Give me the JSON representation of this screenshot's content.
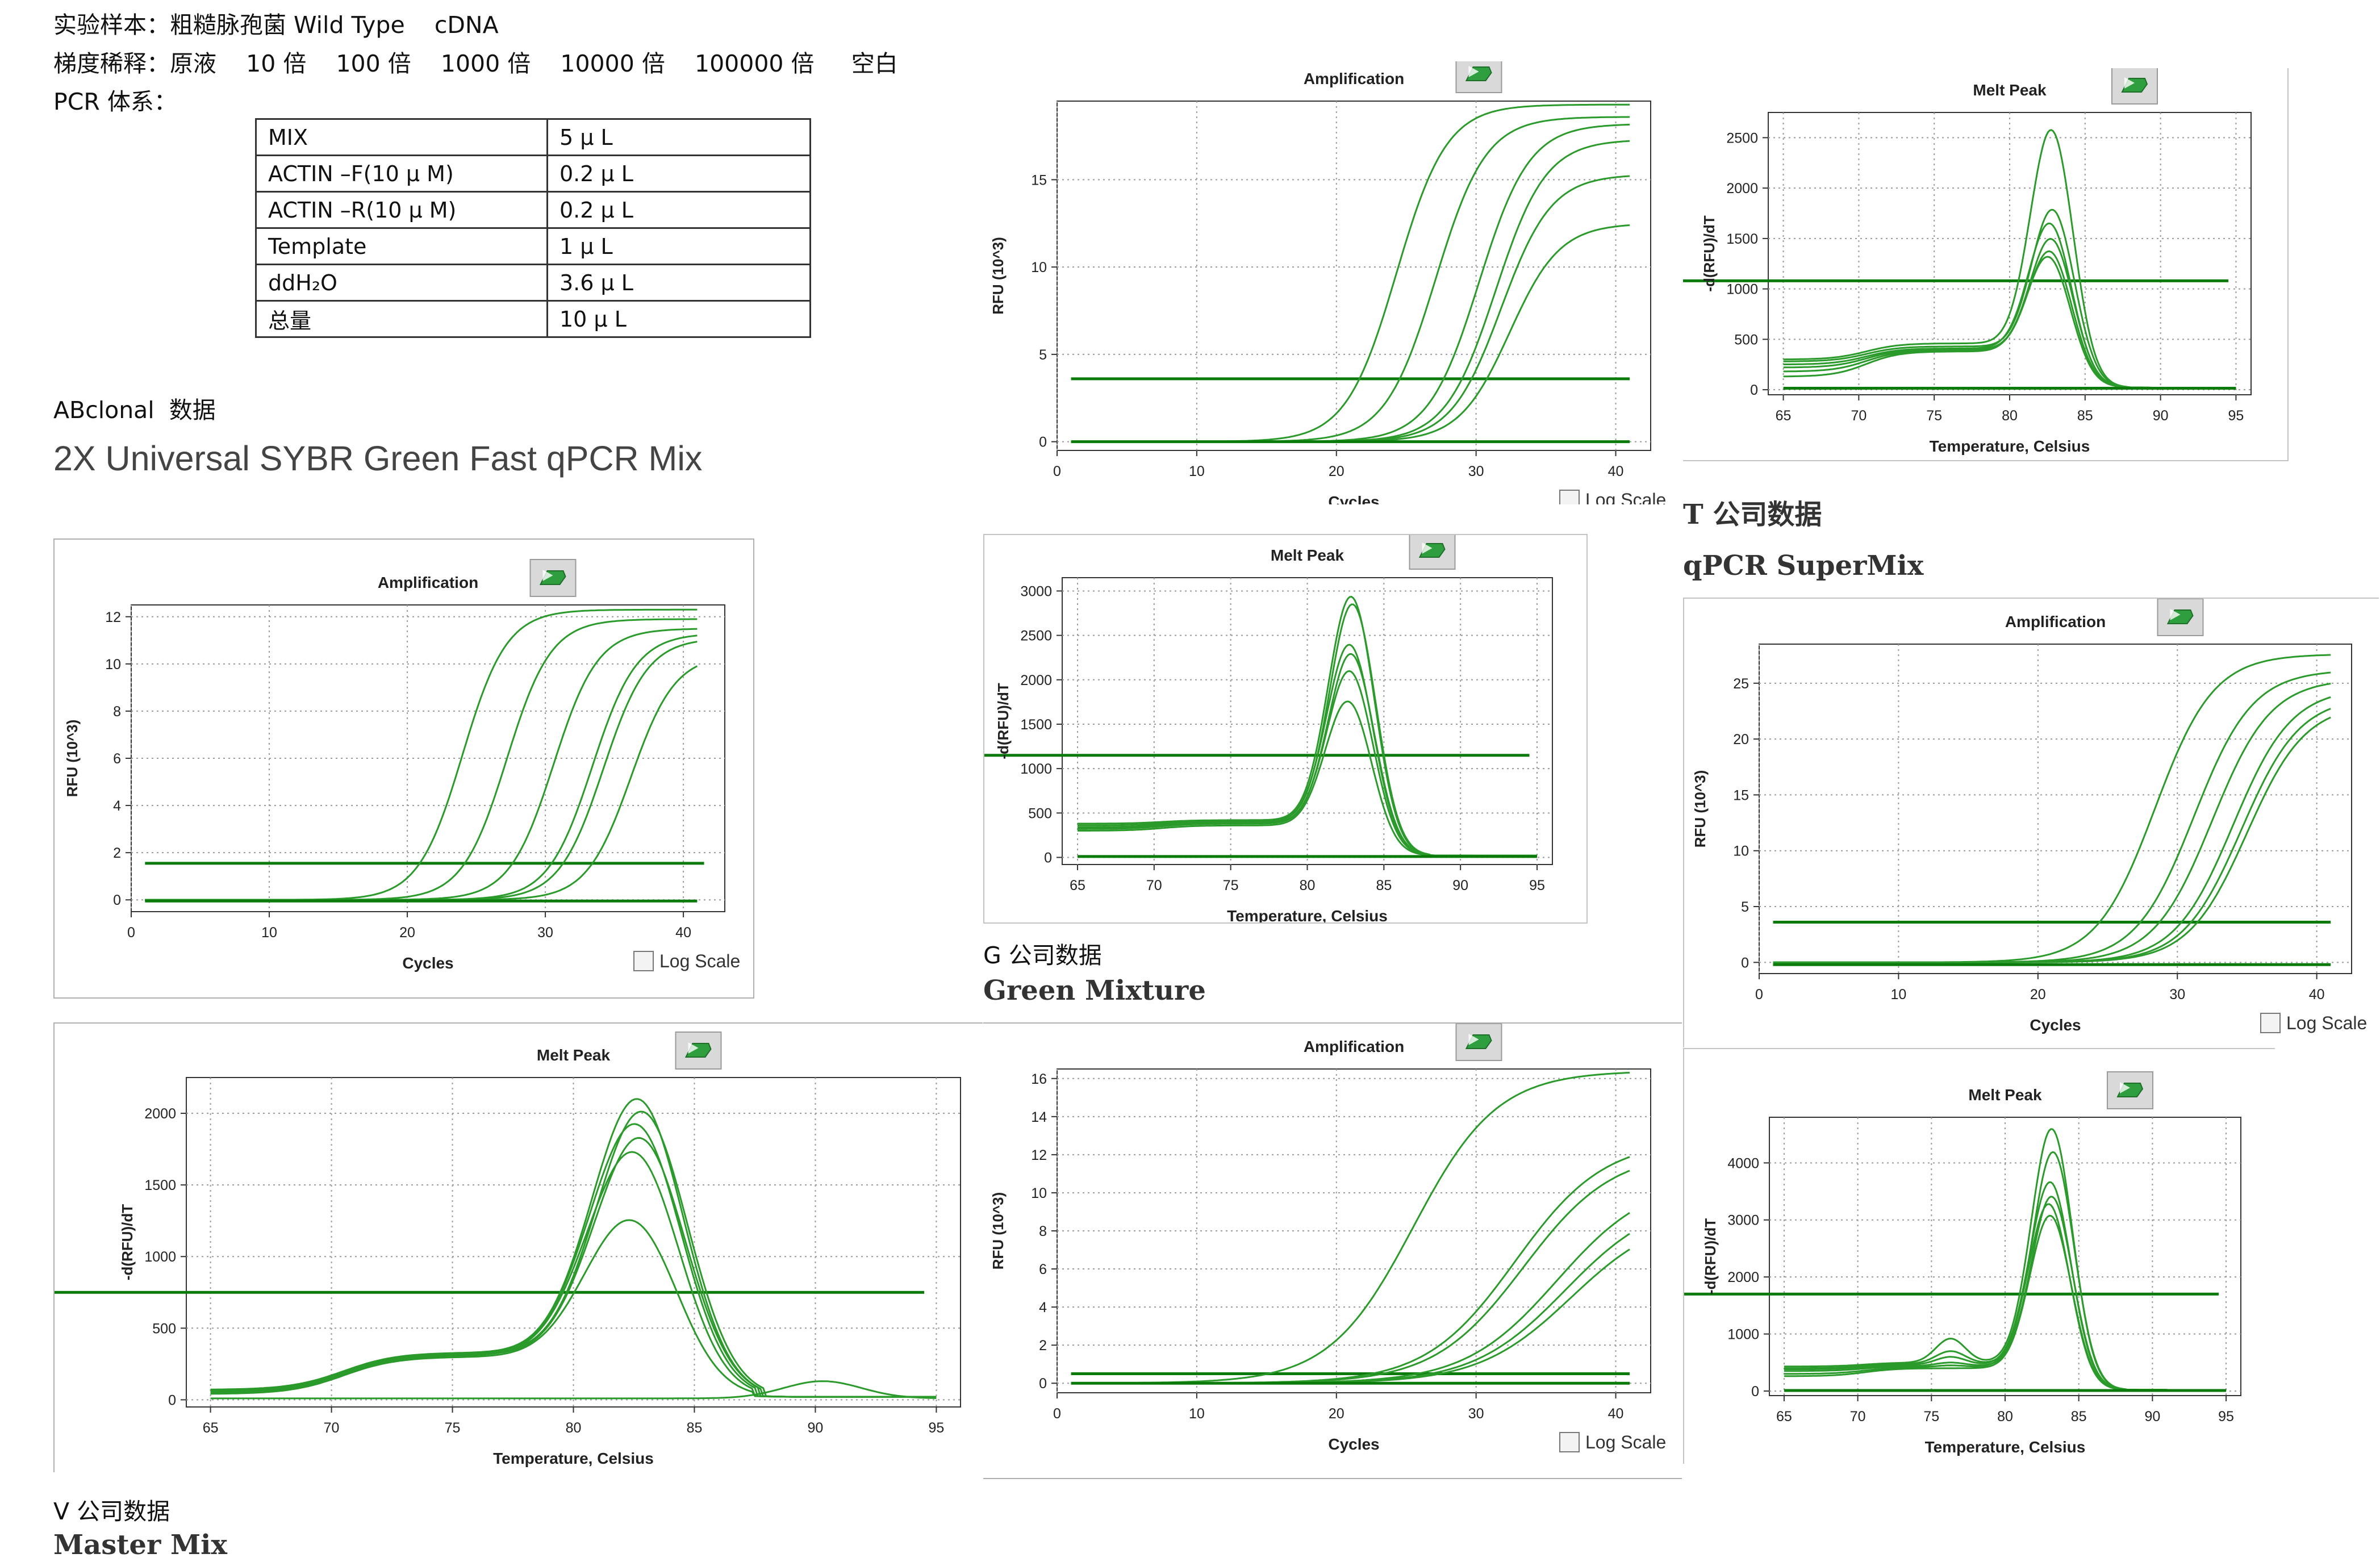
{
  "header": {
    "sample_line": "实验样本：粗糙脉孢菌 Wild Type    cDNA",
    "dilution_line": "梯度稀释：原液    10 倍    100 倍    1000 倍    10000 倍    100000 倍     空白",
    "system_line": "PCR 体系："
  },
  "pcr_table": [
    {
      "name": "MIX",
      "amount": "5 μ L"
    },
    {
      "name": "ACTIN –F(10 μ M)",
      "amount": "0.2 μ L"
    },
    {
      "name": "ACTIN –R(10 μ M)",
      "amount": "0.2 μ L"
    },
    {
      "name": "Template",
      "amount": "1 μ L"
    },
    {
      "name": "ddH₂O",
      "amount": "3.6 μ L"
    },
    {
      "name": "总量",
      "amount": "10 μ L"
    }
  ],
  "abclonal_label": "ABclonal  数据",
  "abclonal_product": "2X Universal SYBR Green Fast qPCR Mix",
  "captions": {
    "t_company": "T 公司数据",
    "t_product": "qPCR SuperMix",
    "g_company": "G 公司数据",
    "g_product": "Green Mixture",
    "v_company": "V 公司数据",
    "v_product": "Master Mix"
  },
  "log_scale_label": "Log Scale",
  "colors": {
    "curve": "#2a9a2a",
    "threshold": "#0a7a0a",
    "grid": "#9a9a9a",
    "icon": "#2e9e3e"
  },
  "chart_data": [
    {
      "id": "abclonal-amp",
      "type": "line",
      "title": "Amplification",
      "xlabel": "Cycles",
      "ylabel": "RFU (10^3)",
      "xlim": [
        0,
        43
      ],
      "ylim": [
        -0.5,
        12.5
      ],
      "xticks": [
        0,
        10,
        20,
        30,
        40
      ],
      "yticks": [
        0,
        2,
        4,
        6,
        8,
        10,
        12
      ],
      "threshold": 1.55,
      "log_scale_checkbox": true,
      "curves": [
        {
          "model": "sigmoid",
          "plateau": 12.3,
          "midpoint": 24.0,
          "slope": 1.6
        },
        {
          "model": "sigmoid",
          "plateau": 11.9,
          "midpoint": 27.2,
          "slope": 1.6
        },
        {
          "model": "sigmoid",
          "plateau": 11.5,
          "midpoint": 30.6,
          "slope": 1.6
        },
        {
          "model": "sigmoid",
          "plateau": 11.3,
          "midpoint": 33.4,
          "slope": 1.6
        },
        {
          "model": "sigmoid",
          "plateau": 11.1,
          "midpoint": 34.2,
          "slope": 1.6
        },
        {
          "model": "sigmoid",
          "plateau": 10.4,
          "midpoint": 36.2,
          "slope": 1.6
        },
        {
          "model": "flat",
          "level": -0.05
        }
      ]
    },
    {
      "id": "abclonal-melt",
      "type": "line",
      "title": "Melt Peak",
      "xlabel": "Temperature, Celsius",
      "ylabel": "-d(RFU)/dT",
      "xlim": [
        64,
        96
      ],
      "ylim": [
        -50,
        2250
      ],
      "xticks": [
        65,
        70,
        75,
        80,
        85,
        90,
        95
      ],
      "yticks": [
        0,
        500,
        1000,
        1500,
        2000
      ],
      "threshold": 750,
      "log_scale_checkbox": false,
      "curves": [
        {
          "model": "melt",
          "peak": 2140,
          "center": 82.7,
          "width": 1.9,
          "baseline": 70,
          "shoulder": 330
        },
        {
          "model": "melt",
          "peak": 2060,
          "center": 82.9,
          "width": 1.9,
          "baseline": 65,
          "shoulder": 325
        },
        {
          "model": "melt",
          "peak": 1960,
          "center": 82.6,
          "width": 1.9,
          "baseline": 55,
          "shoulder": 320
        },
        {
          "model": "melt",
          "peak": 1870,
          "center": 82.8,
          "width": 1.9,
          "baseline": 50,
          "shoulder": 315
        },
        {
          "model": "melt",
          "peak": 1760,
          "center": 82.5,
          "width": 1.9,
          "baseline": 45,
          "shoulder": 310
        },
        {
          "model": "melt",
          "peak": 1280,
          "center": 82.4,
          "width": 1.9,
          "baseline": 40,
          "shoulder": 300
        },
        {
          "model": "melt2",
          "peak": 120,
          "center": 90.3,
          "width": 1.6,
          "baseline": 10
        }
      ]
    },
    {
      "id": "g-amp",
      "type": "line",
      "title": "Amplification",
      "xlabel": "Cycles",
      "ylabel": "RFU (10^3)",
      "xlim": [
        0,
        42.5
      ],
      "ylim": [
        -0.5,
        19.5
      ],
      "xticks": [
        0,
        10,
        20,
        30,
        40
      ],
      "yticks": [
        0,
        5,
        10,
        15
      ],
      "threshold": 3.6,
      "log_scale_checkbox": true,
      "curves": [
        {
          "model": "sigmoid",
          "plateau": 19.3,
          "midpoint": 24.3,
          "slope": 1.8
        },
        {
          "model": "sigmoid",
          "plateau": 18.6,
          "midpoint": 27.1,
          "slope": 1.8
        },
        {
          "model": "sigmoid",
          "plateau": 18.2,
          "midpoint": 30.2,
          "slope": 1.8
        },
        {
          "model": "sigmoid",
          "plateau": 17.3,
          "midpoint": 31.4,
          "slope": 1.8
        },
        {
          "model": "sigmoid",
          "plateau": 15.3,
          "midpoint": 31.8,
          "slope": 1.8
        },
        {
          "model": "sigmoid",
          "plateau": 12.5,
          "midpoint": 32.4,
          "slope": 1.8
        },
        {
          "model": "flat",
          "level": 0.0
        }
      ]
    },
    {
      "id": "g-melt",
      "type": "line",
      "title": "Melt Peak",
      "xlabel": "Temperature, Celsius",
      "ylabel": "-d(RFU)/dT",
      "xlim": [
        64,
        96
      ],
      "ylim": [
        -80,
        3150
      ],
      "xticks": [
        65,
        70,
        75,
        80,
        85,
        90,
        95
      ],
      "yticks": [
        0,
        500,
        1000,
        1500,
        2000,
        2500,
        3000
      ],
      "threshold": 1150,
      "log_scale_checkbox": false,
      "curves": [
        {
          "model": "melt",
          "peak": 3000,
          "center": 82.9,
          "width": 1.5,
          "baseline": 380,
          "shoulder": 420
        },
        {
          "model": "melt",
          "peak": 2920,
          "center": 83.0,
          "width": 1.5,
          "baseline": 360,
          "shoulder": 410
        },
        {
          "model": "melt",
          "peak": 2450,
          "center": 82.8,
          "width": 1.5,
          "baseline": 340,
          "shoulder": 400
        },
        {
          "model": "melt",
          "peak": 2350,
          "center": 82.9,
          "width": 1.5,
          "baseline": 330,
          "shoulder": 390
        },
        {
          "model": "melt",
          "peak": 2150,
          "center": 82.8,
          "width": 1.5,
          "baseline": 320,
          "shoulder": 380
        },
        {
          "model": "melt",
          "peak": 1800,
          "center": 82.7,
          "width": 1.5,
          "baseline": 300,
          "shoulder": 360
        },
        {
          "model": "flat",
          "level": 10
        }
      ]
    },
    {
      "id": "g2-amp",
      "type": "line",
      "title": "Amplification",
      "xlabel": "Cycles",
      "ylabel": "RFU (10^3)",
      "xlim": [
        0,
        42.5
      ],
      "ylim": [
        -0.5,
        16.5
      ],
      "xticks": [
        0,
        10,
        20,
        30,
        40
      ],
      "yticks": [
        0,
        2,
        4,
        6,
        8,
        10,
        12,
        14,
        16
      ],
      "threshold": 0.5,
      "log_scale_checkbox": true,
      "curves": [
        {
          "model": "sigmoid",
          "plateau": 16.4,
          "midpoint": 25.5,
          "slope": 3.0
        },
        {
          "model": "sigmoid",
          "plateau": 12.8,
          "midpoint": 32.8,
          "slope": 3.2
        },
        {
          "model": "sigmoid",
          "plateau": 12.2,
          "midpoint": 33.4,
          "slope": 3.2
        },
        {
          "model": "sigmoid",
          "plateau": 10.8,
          "midpoint": 35.8,
          "slope": 3.3
        },
        {
          "model": "sigmoid",
          "plateau": 9.8,
          "midpoint": 36.4,
          "slope": 3.3
        },
        {
          "model": "sigmoid",
          "plateau": 9.0,
          "midpoint": 36.8,
          "slope": 3.3
        },
        {
          "model": "flat",
          "level": 0.0
        }
      ]
    },
    {
      "id": "t-melt",
      "type": "line",
      "title": "Melt Peak",
      "xlabel": "Temperature, Celsius",
      "ylabel": "-d(RFU)/dT",
      "xlim": [
        64,
        96
      ],
      "ylim": [
        -50,
        2750
      ],
      "xticks": [
        65,
        70,
        75,
        80,
        85,
        90,
        95
      ],
      "yticks": [
        0,
        500,
        1000,
        1500,
        2000,
        2500
      ],
      "threshold": 1080,
      "log_scale_checkbox": false,
      "curves": [
        {
          "model": "melt",
          "peak": 2640,
          "center": 82.8,
          "width": 1.4,
          "baseline": 300,
          "shoulder": 460
        },
        {
          "model": "melt",
          "peak": 1850,
          "center": 82.9,
          "width": 1.4,
          "baseline": 280,
          "shoulder": 430
        },
        {
          "model": "melt",
          "peak": 1700,
          "center": 82.7,
          "width": 1.4,
          "baseline": 250,
          "shoulder": 410
        },
        {
          "model": "melt",
          "peak": 1550,
          "center": 82.8,
          "width": 1.4,
          "baseline": 220,
          "shoulder": 400
        },
        {
          "model": "melt",
          "peak": 1420,
          "center": 82.7,
          "width": 1.4,
          "baseline": 180,
          "shoulder": 390
        },
        {
          "model": "melt",
          "peak": 1360,
          "center": 82.6,
          "width": 1.4,
          "baseline": 130,
          "shoulder": 380
        },
        {
          "model": "flat",
          "level": 15
        }
      ]
    },
    {
      "id": "t-amp",
      "type": "line",
      "title": "Amplification",
      "xlabel": "Cycles",
      "ylabel": "RFU (10^3)",
      "xlim": [
        0,
        42.5
      ],
      "ylim": [
        -1,
        28.5
      ],
      "xticks": [
        0,
        10,
        20,
        30,
        40
      ],
      "yticks": [
        0,
        5,
        10,
        15,
        20,
        25
      ],
      "threshold": 3.6,
      "log_scale_checkbox": true,
      "curves": [
        {
          "model": "sigmoid",
          "plateau": 27.6,
          "midpoint": 28.4,
          "slope": 2.1
        },
        {
          "model": "sigmoid",
          "plateau": 26.2,
          "midpoint": 31.2,
          "slope": 2.1
        },
        {
          "model": "sigmoid",
          "plateau": 25.4,
          "midpoint": 32.5,
          "slope": 2.1
        },
        {
          "model": "sigmoid",
          "plateau": 24.6,
          "midpoint": 34.0,
          "slope": 2.1
        },
        {
          "model": "sigmoid",
          "plateau": 23.8,
          "midpoint": 34.6,
          "slope": 2.1
        },
        {
          "model": "sigmoid",
          "plateau": 23.2,
          "midpoint": 35.0,
          "slope": 2.1
        },
        {
          "model": "flat",
          "level": -0.2
        }
      ]
    },
    {
      "id": "t2-melt",
      "type": "line",
      "title": "Melt Peak",
      "xlabel": "Temperature, Celsius",
      "ylabel": "-d(RFU)/dT",
      "xlim": [
        64,
        96
      ],
      "ylim": [
        -80,
        4800
      ],
      "xticks": [
        65,
        70,
        75,
        80,
        85,
        90,
        95
      ],
      "yticks": [
        0,
        1000,
        2000,
        3000,
        4000
      ],
      "threshold": 1700,
      "log_scale_checkbox": false,
      "curves": [
        {
          "model": "melt",
          "peak": 4700,
          "center": 83.2,
          "width": 1.4,
          "baseline": 430,
          "shoulder": 500,
          "bump": 920
        },
        {
          "model": "melt",
          "peak": 4300,
          "center": 83.3,
          "width": 1.4,
          "baseline": 400,
          "shoulder": 480,
          "bump": 700
        },
        {
          "model": "melt",
          "peak": 3750,
          "center": 83.1,
          "width": 1.4,
          "baseline": 380,
          "shoulder": 460,
          "bump": 600
        },
        {
          "model": "melt",
          "peak": 3500,
          "center": 83.2,
          "width": 1.4,
          "baseline": 350,
          "shoulder": 440,
          "bump": 500
        },
        {
          "model": "melt",
          "peak": 3350,
          "center": 83.0,
          "width": 1.4,
          "baseline": 300,
          "shoulder": 420,
          "bump": 450
        },
        {
          "model": "melt",
          "peak": 3150,
          "center": 83.1,
          "width": 1.4,
          "baseline": 260,
          "shoulder": 400,
          "bump": 400
        },
        {
          "model": "flat",
          "level": 10
        }
      ]
    }
  ]
}
